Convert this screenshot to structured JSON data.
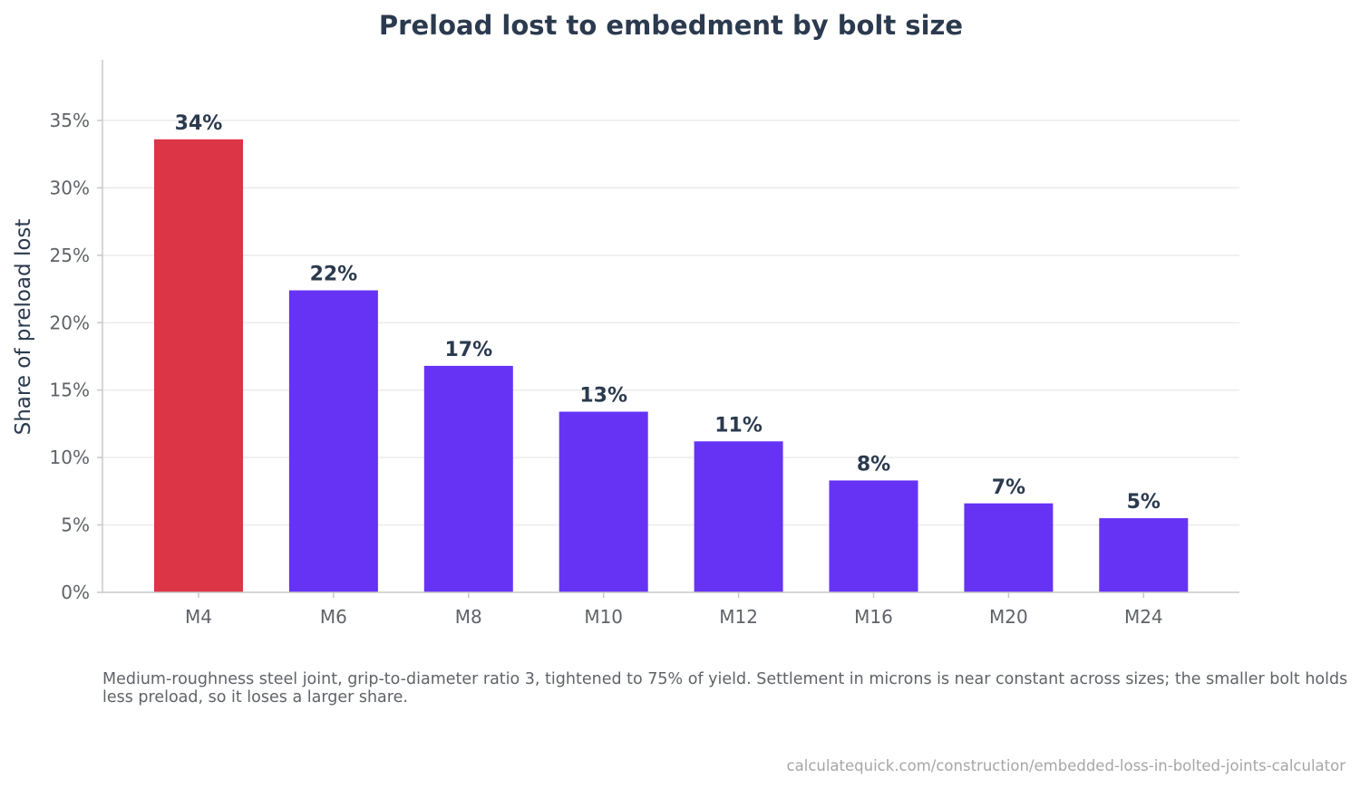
{
  "colors": {
    "highlight": "#dc3545",
    "bar": "#6633f5",
    "grid": "#ececec",
    "axis": "#c8c8c8",
    "text_dark": "#2b3a4e",
    "text_muted": "#5f6368",
    "source_text": "#a6a6a6"
  },
  "chart_data": {
    "type": "bar",
    "title": "Preload lost to embedment by bolt size",
    "xlabel": "",
    "ylabel": "Share of preload lost",
    "categories": [
      "M4",
      "M6",
      "M8",
      "M10",
      "M12",
      "M16",
      "M20",
      "M24"
    ],
    "values": [
      33.6,
      22.4,
      16.8,
      13.4,
      11.2,
      8.3,
      6.6,
      5.5
    ],
    "value_labels": [
      "34%",
      "22%",
      "17%",
      "13%",
      "11%",
      "8%",
      "7%",
      "5%"
    ],
    "highlight_index": 0,
    "ylim": [
      0,
      39.5
    ],
    "yticks": [
      0,
      5,
      10,
      15,
      20,
      25,
      30,
      35
    ],
    "ytick_labels": [
      "0%",
      "5%",
      "10%",
      "15%",
      "20%",
      "25%",
      "30%",
      "35%"
    ],
    "grid": true,
    "legend": "none"
  },
  "caption": "Medium-roughness steel joint, grip-to-diameter ratio 3, tightened to 75% of yield. Settlement in microns is near constant across sizes; the smaller bolt holds less preload, so it loses a larger share.",
  "source": "calculatequick.com/construction/embedded-loss-in-bolted-joints-calculator"
}
